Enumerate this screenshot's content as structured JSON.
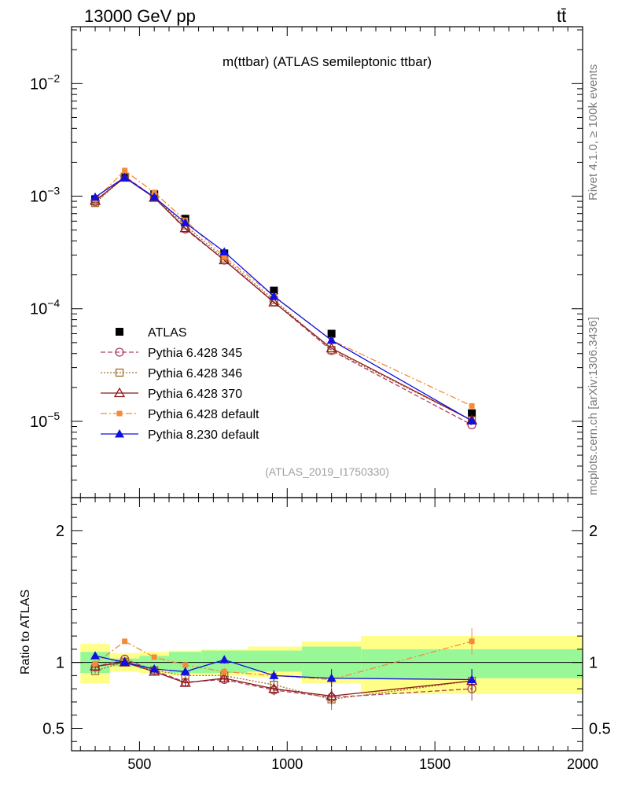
{
  "header": {
    "left": "13000 GeV pp",
    "right": "tt̄"
  },
  "side_labels": {
    "upper": "Rivet 4.1.0, ≥ 100k events",
    "lower": "mcplots.cern.ch [arXiv:1306.3436]"
  },
  "colors": {
    "ATLAS": "#000000",
    "p345": "#b04060",
    "p346": "#a06c2c",
    "p370": "#8b1a1a",
    "p6def": "#f58b3a",
    "p8def": "#1010e0",
    "band_inner": "#98f898",
    "band_outer": "#ffff88"
  },
  "chart_data": [
    {
      "type": "line",
      "panel": "main",
      "title": "m(ttbar) (ATLAS semileptonic ttbar)",
      "subtitle": "(ATLAS_2019_I1750330)",
      "yscale": "log",
      "xlim": [
        270,
        2000
      ],
      "ylim": [
        2.1e-06,
        0.032
      ],
      "y_tick_labels": [
        {
          "value": 0.01,
          "label": "10",
          "exp": "−2"
        },
        {
          "value": 0.001,
          "label": "10",
          "exp": "−3"
        },
        {
          "value": 0.0001,
          "label": "10",
          "exp": "−4"
        },
        {
          "value": 1e-05,
          "label": "10",
          "exp": "−5"
        }
      ],
      "x": [
        350,
        450,
        550,
        655,
        787,
        955,
        1150,
        1625
      ],
      "series": [
        {
          "key": "ATLAS",
          "name": "ATLAS",
          "marker": "square-filled",
          "line": "none",
          "values": [
            0.00094,
            0.00146,
            0.00104,
            0.00063,
            0.00031,
            0.000145,
            6e-05,
            1.18e-05
          ],
          "xerr": [
            [
              300,
              400
            ],
            [
              400,
              500
            ],
            [
              500,
              600
            ],
            [
              600,
              710
            ],
            [
              710,
              865
            ],
            [
              865,
              1050
            ],
            [
              1050,
              1250
            ],
            [
              1250,
              2000
            ]
          ]
        },
        {
          "key": "p345",
          "name": "Pythia 6.428 345",
          "marker": "circle-open",
          "line": "dashed",
          "values": [
            0.00089,
            0.0015,
            0.00098,
            0.00051,
            0.00027,
            0.000115,
            4.25e-05,
            9.3e-06
          ]
        },
        {
          "key": "p346",
          "name": "Pythia 6.428 346",
          "marker": "square-open",
          "line": "dotted",
          "values": [
            0.00087,
            0.00149,
            0.00098,
            0.00055,
            0.00028,
            0.00012,
            4.3e-05,
            1.02e-05
          ]
        },
        {
          "key": "p370",
          "name": "Pythia 6.428 370",
          "marker": "triangle-open",
          "line": "solid",
          "values": [
            0.00091,
            0.00146,
            0.00097,
            0.00052,
            0.00027,
            0.000114,
            4.45e-05,
            1.02e-05
          ]
        },
        {
          "key": "p6def",
          "name": "Pythia 6.428 default",
          "marker": "square-small-filled",
          "line": "dashdot",
          "values": [
            0.00093,
            0.00169,
            0.00108,
            0.00061,
            0.00029,
            0.00013,
            5.25e-05,
            1.37e-05
          ]
        },
        {
          "key": "p8def",
          "name": "Pythia 8.230 default",
          "marker": "triangle-filled",
          "line": "solid",
          "values": [
            0.00098,
            0.00147,
            0.00098,
            0.00058,
            0.00032,
            0.000129,
            5.25e-05,
            1.01e-05
          ]
        }
      ]
    },
    {
      "type": "line",
      "panel": "ratio",
      "ylabel": "Ratio to ATLAS",
      "xlabel": "",
      "yscale": "linear",
      "xlim": [
        270,
        2000
      ],
      "ylim": [
        0.33,
        2.25
      ],
      "x_tick_labels": [
        "500",
        "1000",
        "1500",
        "2000"
      ],
      "x_ticks": [
        500,
        1000,
        1500,
        2000
      ],
      "y_tick_labels": [
        "0.5",
        "1",
        "2"
      ],
      "y_ticks": [
        0.5,
        1,
        2
      ],
      "bands": {
        "edges": [
          [
            300,
            400
          ],
          [
            400,
            500
          ],
          [
            500,
            600
          ],
          [
            600,
            710
          ],
          [
            710,
            865
          ],
          [
            865,
            1050
          ],
          [
            1050,
            1250
          ],
          [
            1250,
            2000
          ]
        ],
        "inner": [
          [
            0.92,
            1.08
          ],
          [
            0.97,
            1.03
          ],
          [
            0.95,
            1.05
          ],
          [
            0.92,
            1.08
          ],
          [
            0.92,
            1.09
          ],
          [
            0.93,
            1.09
          ],
          [
            0.88,
            1.12
          ],
          [
            0.88,
            1.1
          ]
        ],
        "outer": [
          [
            0.84,
            1.14
          ],
          [
            0.93,
            1.07
          ],
          [
            0.92,
            1.08
          ],
          [
            0.9,
            1.09
          ],
          [
            0.9,
            1.1
          ],
          [
            0.89,
            1.12
          ],
          [
            0.84,
            1.16
          ],
          [
            0.76,
            1.2
          ]
        ]
      },
      "series": [
        {
          "key": "p345",
          "name": "Pythia 6.428 345",
          "values": [
            0.965,
            1.025,
            0.94,
            0.85,
            0.87,
            0.79,
            0.735,
            0.8
          ],
          "yerr": [
            0.02,
            0.015,
            0.02,
            0.025,
            0.03,
            0.04,
            0.06,
            0.09
          ]
        },
        {
          "key": "p346",
          "name": "Pythia 6.428 346",
          "values": [
            0.935,
            1.005,
            0.94,
            0.9,
            0.9,
            0.83,
            0.72,
            0.86
          ],
          "yerr": [
            0.02,
            0.015,
            0.02,
            0.025,
            0.03,
            0.04,
            0.08,
            0.09
          ]
        },
        {
          "key": "p370",
          "name": "Pythia 6.428 370",
          "values": [
            0.97,
            1.0,
            0.93,
            0.845,
            0.88,
            0.8,
            0.745,
            0.86
          ],
          "yerr": [
            0.02,
            0.015,
            0.02,
            0.025,
            0.03,
            0.04,
            0.06,
            0.08
          ]
        },
        {
          "key": "p6def",
          "name": "Pythia 6.428 default",
          "values": [
            0.99,
            1.16,
            1.04,
            0.98,
            0.93,
            0.9,
            0.87,
            1.16
          ],
          "yerr": [
            0.02,
            0.015,
            0.02,
            0.025,
            0.03,
            0.04,
            0.06,
            0.1
          ]
        },
        {
          "key": "p8def",
          "name": "Pythia 8.230 default",
          "values": [
            1.05,
            1.0,
            0.95,
            0.93,
            1.02,
            0.9,
            0.88,
            0.87
          ],
          "yerr": [
            0.02,
            0.015,
            0.02,
            0.025,
            0.03,
            0.04,
            0.07,
            0.08
          ]
        }
      ]
    }
  ]
}
